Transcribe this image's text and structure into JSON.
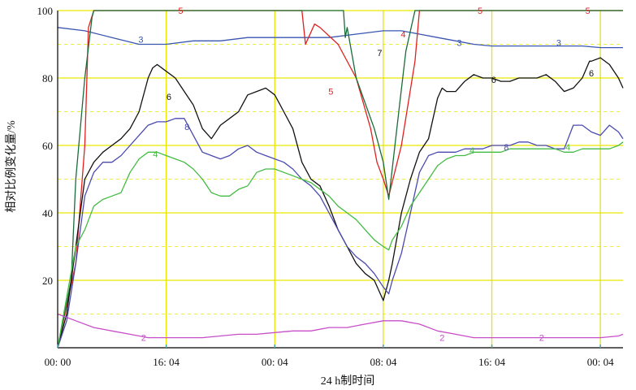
{
  "chart_data": {
    "type": "line",
    "xlabel": "24 h制时间",
    "ylabel": "相对比例变化量/%",
    "ylim": [
      0,
      100
    ],
    "xlim": [
      0,
      60
    ],
    "x_ticks": [
      {
        "x": 0,
        "label": "00: 00"
      },
      {
        "x": 12,
        "label": "16: 04"
      },
      {
        "x": 24,
        "label": "00: 04"
      },
      {
        "x": 36,
        "label": "08: 04"
      },
      {
        "x": 48,
        "label": "16: 04"
      },
      {
        "x": 60,
        "label": "00: 04"
      }
    ],
    "y_ticks": [
      20,
      40,
      60,
      80,
      100
    ],
    "grid": true,
    "colors": {
      "grid_solid": "#e6e600",
      "grid_dash": "#e6e600",
      "axis": "#000000",
      "tick_mark": "#4da6a6"
    },
    "series": [
      {
        "name": "3",
        "color": "#3a56b0",
        "x": [
          0,
          3,
          6,
          9,
          12,
          15,
          18,
          21,
          24,
          27,
          30,
          33,
          36,
          38,
          40,
          42,
          44,
          46,
          48,
          50,
          52,
          54,
          56,
          58,
          60,
          62.5
        ],
        "y": [
          95,
          94,
          92,
          90,
          90,
          91,
          91,
          92,
          92,
          92,
          92,
          93,
          94,
          94,
          93,
          92,
          91,
          90,
          89.5,
          89.5,
          89.5,
          89.5,
          89.5,
          89.5,
          89,
          89
        ]
      },
      {
        "name": "5",
        "color": "#e02020",
        "x": [
          0,
          2,
          3,
          3.4,
          4,
          10,
          20,
          27,
          27.4,
          28.4,
          29,
          31,
          33,
          34.6,
          35.3,
          36,
          36.6,
          38,
          39.5,
          40,
          41,
          50,
          62.5
        ],
        "y": [
          0,
          25,
          60,
          95,
          100,
          100,
          100,
          100,
          90,
          96,
          95,
          90,
          80,
          65,
          55,
          50,
          45,
          60,
          85,
          100,
          100,
          100,
          100
        ]
      },
      {
        "name": "7",
        "color": "#1a6b3a",
        "x": [
          0,
          1.5,
          2,
          3,
          3.8,
          4,
          30,
          31.6,
          31.8,
          32,
          33,
          35,
          36,
          36.6,
          37.8,
          38.5,
          39.5,
          40,
          62.5
        ],
        "y": [
          0,
          20,
          50,
          80,
          98,
          100,
          100,
          100,
          92,
          95,
          80,
          65,
          55,
          44,
          72,
          88,
          100,
          100,
          100
        ]
      },
      {
        "name": "6",
        "color": "#111111",
        "x": [
          0,
          1,
          2,
          3,
          4,
          5,
          6,
          7,
          8,
          9,
          10,
          10.5,
          11,
          12,
          13,
          14,
          15,
          16,
          17,
          18,
          19,
          20,
          21,
          22,
          23,
          24,
          25,
          26,
          27,
          28,
          29,
          30,
          31,
          32,
          33,
          34,
          35,
          36,
          36.6,
          37,
          38,
          39,
          40,
          41,
          42,
          42.5,
          43,
          44,
          45,
          46,
          47,
          48,
          49,
          50,
          51,
          52,
          53,
          54,
          55,
          56,
          57,
          58,
          58.8,
          59,
          60,
          61,
          62,
          62.5
        ],
        "y": [
          0,
          10,
          30,
          50,
          55,
          58,
          60,
          62,
          65,
          70,
          80,
          83,
          84,
          82,
          80,
          76,
          72,
          65,
          62,
          66,
          68,
          70,
          75,
          76,
          77,
          75,
          70,
          65,
          55,
          50,
          48,
          42,
          35,
          30,
          25,
          22,
          20,
          14,
          20,
          25,
          40,
          50,
          58,
          62,
          74,
          77,
          76,
          76,
          79,
          81,
          80,
          80,
          79,
          79,
          80,
          80,
          80,
          81,
          79,
          76,
          77,
          80,
          85,
          85,
          86,
          84,
          80,
          77
        ]
      },
      {
        "name": "8",
        "color": "#4a4ab0",
        "x": [
          0,
          1,
          2,
          3,
          4,
          5,
          6,
          7,
          8,
          9,
          10,
          11,
          12,
          13,
          14,
          15,
          16,
          17,
          18,
          19,
          20,
          21,
          22,
          23,
          24,
          25,
          26,
          27,
          28,
          29,
          30,
          31,
          32,
          33,
          34,
          35,
          36,
          36.6,
          37,
          38,
          39,
          40,
          41,
          42,
          43,
          44,
          45,
          46,
          47,
          48,
          49,
          50,
          51,
          52,
          53,
          54,
          55,
          56,
          57,
          58,
          59,
          60,
          61,
          62,
          62.5
        ],
        "y": [
          0,
          8,
          25,
          45,
          52,
          55,
          55,
          57,
          60,
          63,
          66,
          67,
          67,
          68,
          68,
          63,
          58,
          57,
          56,
          57,
          59,
          60,
          58,
          57,
          56,
          55,
          53,
          50,
          48,
          45,
          40,
          35,
          30,
          27,
          25,
          22,
          18,
          16,
          20,
          28,
          40,
          52,
          57,
          58,
          58,
          58,
          59,
          59,
          59,
          60,
          60,
          60,
          61,
          61,
          60,
          60,
          59,
          59,
          66,
          66,
          64,
          63,
          66,
          64,
          62
        ]
      },
      {
        "name": "4",
        "color": "#44bb44",
        "x": [
          0,
          1,
          2,
          3,
          4,
          5,
          6,
          7,
          8,
          9,
          10,
          11,
          12,
          13,
          14,
          15,
          16,
          17,
          18,
          19,
          20,
          21,
          22,
          23,
          24,
          25,
          26,
          27,
          28,
          29,
          30,
          31,
          32,
          33,
          34,
          35,
          36,
          36.6,
          37,
          38,
          39,
          40,
          41,
          42,
          43,
          44,
          45,
          46,
          47,
          48,
          49,
          50,
          51,
          52,
          53,
          54,
          55,
          56,
          57,
          58,
          59,
          60,
          61,
          62,
          62.5
        ],
        "y": [
          0,
          15,
          30,
          35,
          42,
          44,
          45,
          46,
          52,
          56,
          58,
          58,
          57,
          56,
          55,
          53,
          50,
          46,
          45,
          45,
          47,
          48,
          52,
          53,
          53,
          52,
          51,
          50,
          49,
          47,
          45,
          42,
          40,
          38,
          35,
          32,
          30,
          29,
          32,
          36,
          42,
          46,
          50,
          54,
          56,
          57,
          57,
          58,
          58,
          58,
          58,
          59,
          59,
          59,
          59,
          59,
          59,
          58,
          58,
          59,
          59,
          59,
          59,
          60,
          61
        ]
      },
      {
        "name": "2",
        "color": "#c84ec8",
        "x": [
          0,
          2,
          4,
          6,
          8,
          10,
          12,
          14,
          16,
          18,
          20,
          22,
          24,
          26,
          28,
          30,
          32,
          34,
          36,
          38,
          40,
          42,
          44,
          46,
          48,
          50,
          52,
          54,
          56,
          58,
          60,
          62,
          62.5
        ],
        "y": [
          10,
          8,
          6,
          5,
          4,
          3,
          3,
          3,
          3,
          3.5,
          4,
          4,
          4.5,
          5,
          5,
          6,
          6,
          7,
          8,
          8,
          7,
          5,
          4,
          3,
          3,
          3,
          3,
          3,
          3,
          3,
          3,
          3.5,
          4
        ]
      }
    ],
    "curve_labels": [
      {
        "text": "3",
        "x": 9.2,
        "y": 91.5,
        "series": "3"
      },
      {
        "text": "3",
        "x": 44.4,
        "y": 90.5,
        "series": "3"
      },
      {
        "text": "3",
        "x": 55.4,
        "y": 90.5,
        "series": "3"
      },
      {
        "text": "5",
        "x": 13.6,
        "y": 100,
        "series": "5"
      },
      {
        "text": "5",
        "x": 46.7,
        "y": 100,
        "series": "5"
      },
      {
        "text": "5",
        "x": 58.6,
        "y": 100,
        "series": "5"
      },
      {
        "text": "5",
        "x": 30.2,
        "y": 76,
        "series": "5"
      },
      {
        "text": "4",
        "x": 38.2,
        "y": 93,
        "series": "5"
      },
      {
        "text": "7",
        "x": 35.6,
        "y": 87.5,
        "series": "7"
      },
      {
        "text": "6",
        "x": 12.3,
        "y": 74.5,
        "series": "6"
      },
      {
        "text": "6",
        "x": 48.2,
        "y": 79.5,
        "series": "6"
      },
      {
        "text": "6",
        "x": 59.0,
        "y": 81.5,
        "series": "6"
      },
      {
        "text": "8",
        "x": 14.3,
        "y": 65.5,
        "series": "8"
      },
      {
        "text": "8",
        "x": 49.6,
        "y": 59.5,
        "series": "8"
      },
      {
        "text": "4",
        "x": 10.8,
        "y": 57.5,
        "series": "4"
      },
      {
        "text": "4",
        "x": 45.8,
        "y": 58.5,
        "series": "4"
      },
      {
        "text": "4",
        "x": 56.4,
        "y": 59.5,
        "series": "4"
      },
      {
        "text": "2",
        "x": 9.5,
        "y": 3,
        "series": "2"
      },
      {
        "text": "2",
        "x": 42.5,
        "y": 3,
        "series": "2"
      },
      {
        "text": "2",
        "x": 53.5,
        "y": 3,
        "series": "2"
      }
    ]
  }
}
